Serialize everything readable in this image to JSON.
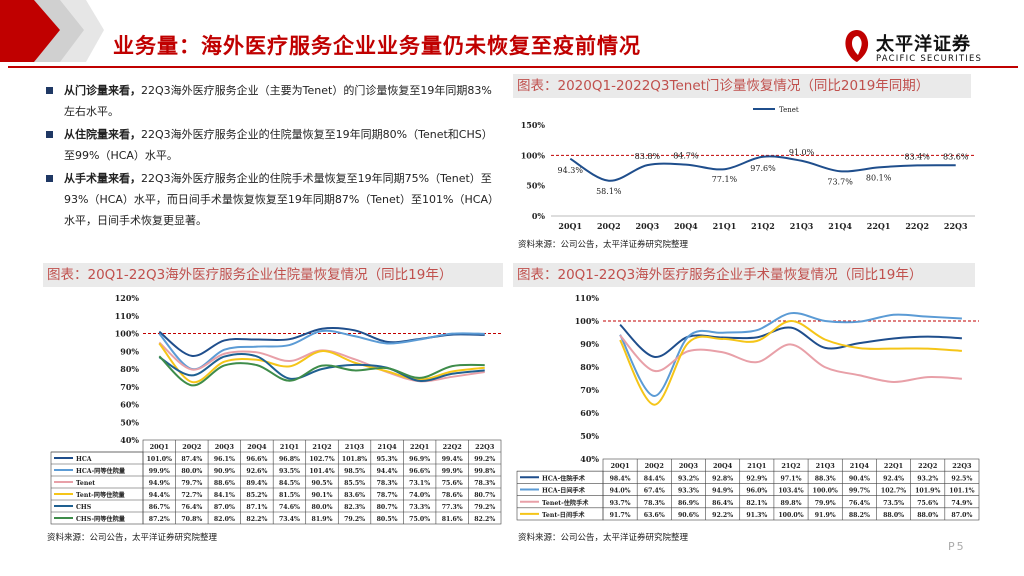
{
  "header": {
    "title": "业务量：海外医疗服务企业业务量仍未恢复至疫前情况",
    "logo_cn": "太平洋证券",
    "logo_en": "PACIFIC SECURITIES",
    "brand_color": "#c00000"
  },
  "bullets": [
    {
      "lead": "从门诊量来看，",
      "text": "22Q3海外医疗服务企业（主要为Tenet）的门诊量恢复至19年同期83%左右水平。"
    },
    {
      "lead": "从住院量来看，",
      "text": "22Q3海外医疗服务企业的住院量恢复至19年同期80%（Tenet和CHS）至99%（HCA）水平。"
    },
    {
      "lead": "从手术量来看，",
      "text": "22Q3海外医疗服务企业的住院手术量恢复至19年同期75%（Tenet）至93%（HCA）水平，而日间手术量恢复恢复至19年同期87%（Tenet）至101%（HCA）水平，日间手术恢复更显著。"
    }
  ],
  "chart_titles": {
    "c1": "图表：2020Q1-2022Q3Tenet门诊量恢复情况（同比2019年同期）",
    "c2": "图表：20Q1-22Q3海外医疗服务企业住院量恢复情况（同比19年）",
    "c3": "图表：20Q1-22Q3海外医疗服务企业手术量恢复情况（同比19年）"
  },
  "source": "资料来源：公司公告，太平洋证券研究院整理",
  "page": "P5",
  "chart_data": [
    {
      "type": "line",
      "title": "2020Q1-2022Q3Tenet门诊量恢复情况",
      "categories": [
        "20Q1",
        "20Q2",
        "20Q3",
        "20Q4",
        "21Q1",
        "21Q2",
        "21Q3",
        "21Q4",
        "22Q1",
        "22Q2",
        "22Q3"
      ],
      "series": [
        {
          "name": "Tenet",
          "color": "#1f4e8c",
          "values": [
            94.3,
            58.1,
            83.8,
            84.7,
            77.1,
            97.6,
            91.0,
            73.7,
            80.1,
            83.4,
            83.6
          ],
          "labels": [
            "94.3%",
            "58.1%",
            "83.8%",
            "84.7%",
            "77.1%",
            "97.6%",
            "91.0%",
            "73.7%",
            "80.1%",
            "83.4%",
            "83.6%"
          ]
        }
      ],
      "ylim": [
        0,
        150
      ],
      "ticks": [
        "0%",
        "50%",
        "100%",
        "150%"
      ],
      "reference": 100
    },
    {
      "type": "line",
      "title": "20Q1-22Q3海外医疗服务企业住院量恢复情况",
      "categories": [
        "20Q1",
        "20Q2",
        "20Q3",
        "20Q4",
        "21Q1",
        "21Q2",
        "21Q3",
        "21Q4",
        "22Q1",
        "22Q2",
        "22Q3"
      ],
      "series": [
        {
          "name": "HCA",
          "color": "#1f4e8c",
          "values": [
            101.0,
            87.4,
            96.1,
            96.6,
            96.8,
            102.7,
            101.8,
            95.3,
            96.9,
            99.4,
            99.2
          ],
          "labels": [
            "101.0%",
            "87.4%",
            "96.1%",
            "96.6%",
            "96.8%",
            "102.7%",
            "101.8%",
            "95.3%",
            "96.9%",
            "99.4%",
            "99.2%"
          ]
        },
        {
          "name": "HCA-同等住院量",
          "color": "#5b9bd5",
          "values": [
            99.9,
            80.0,
            90.9,
            92.6,
            93.5,
            101.4,
            98.5,
            94.4,
            96.6,
            99.9,
            99.8
          ],
          "labels": [
            "99.9%",
            "80.0%",
            "90.9%",
            "92.6%",
            "93.5%",
            "101.4%",
            "98.5%",
            "94.4%",
            "96.6%",
            "99.9%",
            "99.8%"
          ]
        },
        {
          "name": "Tenet",
          "color": "#e8a0a8",
          "values": [
            94.9,
            79.7,
            88.6,
            89.4,
            84.5,
            90.5,
            85.5,
            78.3,
            73.1,
            75.6,
            78.3
          ],
          "labels": [
            "94.9%",
            "79.7%",
            "88.6%",
            "89.4%",
            "84.5%",
            "90.5%",
            "85.5%",
            "78.3%",
            "73.1%",
            "75.6%",
            "78.3%"
          ]
        },
        {
          "name": "Tent-同等住院量",
          "color": "#f5c518",
          "values": [
            94.4,
            72.7,
            84.1,
            85.2,
            81.5,
            90.1,
            83.6,
            78.7,
            74.0,
            78.6,
            80.7
          ],
          "labels": [
            "94.4%",
            "72.7%",
            "84.1%",
            "85.2%",
            "81.5%",
            "90.1%",
            "83.6%",
            "78.7%",
            "74.0%",
            "78.6%",
            "80.7%"
          ]
        },
        {
          "name": "CHS",
          "color": "#1f6090",
          "values": [
            86.7,
            76.4,
            87.0,
            87.1,
            74.6,
            80.0,
            82.3,
            80.7,
            73.3,
            77.3,
            79.2
          ],
          "labels": [
            "86.7%",
            "76.4%",
            "87.0%",
            "87.1%",
            "74.6%",
            "80.0%",
            "82.3%",
            "80.7%",
            "73.3%",
            "77.3%",
            "79.2%"
          ]
        },
        {
          "name": "CHS-同等住院量",
          "color": "#3e8c4a",
          "values": [
            87.2,
            70.8,
            82.0,
            82.2,
            73.4,
            81.9,
            79.2,
            80.5,
            75.0,
            81.6,
            82.2
          ],
          "labels": [
            "87.2%",
            "70.8%",
            "82.0%",
            "82.2%",
            "73.4%",
            "81.9%",
            "79.2%",
            "80.5%",
            "75.0%",
            "81.6%",
            "82.2%"
          ]
        }
      ],
      "ylim": [
        40,
        120
      ],
      "ticks": [
        "40%",
        "50%",
        "60%",
        "70%",
        "80%",
        "90%",
        "100%",
        "110%",
        "120%"
      ],
      "reference": 100
    },
    {
      "type": "line",
      "title": "20Q1-22Q3海外医疗服务企业手术量恢复情况",
      "categories": [
        "20Q1",
        "20Q2",
        "20Q3",
        "20Q4",
        "21Q1",
        "21Q2",
        "21Q3",
        "21Q4",
        "22Q1",
        "22Q2",
        "22Q3"
      ],
      "series": [
        {
          "name": "HCA-住院手术",
          "color": "#1f4e8c",
          "values": [
            98.4,
            84.4,
            93.2,
            92.8,
            92.9,
            97.1,
            88.3,
            90.4,
            92.4,
            93.2,
            92.5
          ],
          "labels": [
            "98.4%",
            "84.4%",
            "93.2%",
            "92.8%",
            "92.9%",
            "97.1%",
            "88.3%",
            "90.4%",
            "92.4%",
            "93.2%",
            "92.5%"
          ]
        },
        {
          "name": "HCA-日间手术",
          "color": "#5b9bd5",
          "values": [
            94.0,
            67.4,
            93.3,
            94.9,
            96.0,
            103.4,
            100.0,
            99.7,
            102.7,
            101.9,
            101.1
          ],
          "labels": [
            "94.0%",
            "67.4%",
            "93.3%",
            "94.9%",
            "96.0%",
            "103.4%",
            "100.0%",
            "99.7%",
            "102.7%",
            "101.9%",
            "101.1%"
          ]
        },
        {
          "name": "Tenet-住院手术",
          "color": "#e8a0a8",
          "values": [
            93.7,
            78.3,
            86.9,
            86.4,
            82.1,
            89.8,
            79.9,
            76.4,
            73.5,
            75.6,
            74.9
          ],
          "labels": [
            "93.7%",
            "78.3%",
            "86.9%",
            "86.4%",
            "82.1%",
            "89.8%",
            "79.9%",
            "76.4%",
            "73.5%",
            "75.6%",
            "74.9%"
          ]
        },
        {
          "name": "Tent-日间手术",
          "color": "#f5c518",
          "values": [
            91.7,
            63.6,
            90.6,
            92.2,
            91.3,
            100.0,
            91.9,
            88.2,
            88.0,
            88.0,
            87.0
          ],
          "labels": [
            "91.7%",
            "63.6%",
            "90.6%",
            "92.2%",
            "91.3%",
            "100.0%",
            "91.9%",
            "88.2%",
            "88.0%",
            "88.0%",
            "87.0%"
          ]
        }
      ],
      "ylim": [
        40,
        110
      ],
      "ticks": [
        "40%",
        "50%",
        "60%",
        "70%",
        "80%",
        "90%",
        "100%",
        "110%"
      ],
      "reference": 100
    }
  ]
}
